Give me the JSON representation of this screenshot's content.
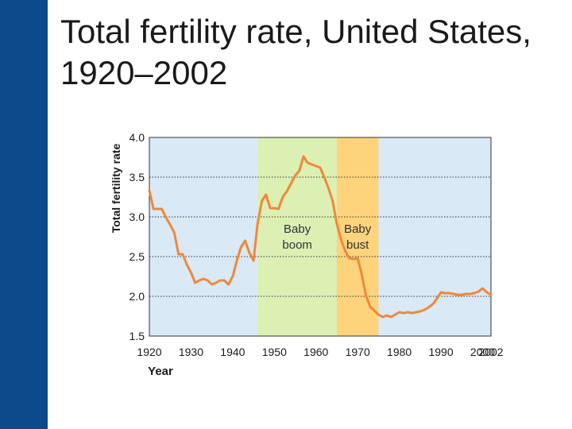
{
  "slide": {
    "title": "Total fertility rate, United States, 1920–2002",
    "accent_color": "#0c4a8c"
  },
  "chart_data": {
    "type": "line",
    "title": "",
    "xlabel": "Year",
    "ylabel": "Total fertility rate",
    "xlim": [
      1920,
      2002
    ],
    "ylim": [
      1.5,
      4.0
    ],
    "x_ticks": [
      "1920",
      "1930",
      "1940",
      "1950",
      "1960",
      "1970",
      "1980",
      "1990",
      "2000",
      "2002"
    ],
    "y_ticks": [
      "1.5",
      "2.0",
      "2.5",
      "3.0",
      "3.5",
      "4.0"
    ],
    "grid": "horizontal dotted",
    "regions": [
      {
        "label_line1": "Baby",
        "label_line2": "boom",
        "start": 1946,
        "end": 1965,
        "color": "#dcf0b4"
      },
      {
        "label_line1": "Baby",
        "label_line2": "bust",
        "start": 1965,
        "end": 1975,
        "color": "#fdd37c"
      }
    ],
    "background_color": "#d9e9f5",
    "line_color": "#f0883a",
    "series": [
      {
        "x": [
          1920,
          1921,
          1922,
          1923,
          1924,
          1925,
          1926,
          1927,
          1928,
          1929,
          1930,
          1931,
          1932,
          1933,
          1934,
          1935,
          1936,
          1937,
          1938,
          1939,
          1940,
          1941,
          1942,
          1943,
          1944,
          1945,
          1946,
          1947,
          1948,
          1949,
          1950,
          1951,
          1952,
          1953,
          1954,
          1955,
          1956,
          1957,
          1958,
          1959,
          1960,
          1961,
          1962,
          1963,
          1964,
          1965,
          1966,
          1967,
          1968,
          1969,
          1970,
          1971,
          1972,
          1973,
          1974,
          1975,
          1976,
          1977,
          1978,
          1979,
          1980,
          1981,
          1982,
          1983,
          1984,
          1985,
          1986,
          1987,
          1988,
          1989,
          1990,
          1991,
          1992,
          1993,
          1994,
          1995,
          1996,
          1997,
          1998,
          1999,
          2000,
          2001,
          2002
        ],
        "y": [
          3.33,
          3.1,
          3.1,
          3.1,
          2.99,
          2.9,
          2.8,
          2.53,
          2.53,
          2.4,
          2.3,
          2.17,
          2.2,
          2.22,
          2.2,
          2.15,
          2.17,
          2.2,
          2.2,
          2.15,
          2.25,
          2.45,
          2.62,
          2.7,
          2.55,
          2.45,
          2.92,
          3.2,
          3.28,
          3.11,
          3.11,
          3.1,
          3.25,
          3.32,
          3.42,
          3.52,
          3.58,
          3.76,
          3.68,
          3.66,
          3.64,
          3.62,
          3.5,
          3.36,
          3.2,
          2.91,
          2.72,
          2.57,
          2.48,
          2.47,
          2.48,
          2.27,
          2.01,
          1.87,
          1.82,
          1.77,
          1.74,
          1.76,
          1.74,
          1.77,
          1.8,
          1.79,
          1.8,
          1.79,
          1.8,
          1.81,
          1.83,
          1.86,
          1.9,
          1.97,
          2.05,
          2.04,
          2.04,
          2.03,
          2.02,
          2.02,
          2.03,
          2.03,
          2.04,
          2.06,
          2.1,
          2.05,
          2.02
        ]
      }
    ]
  }
}
